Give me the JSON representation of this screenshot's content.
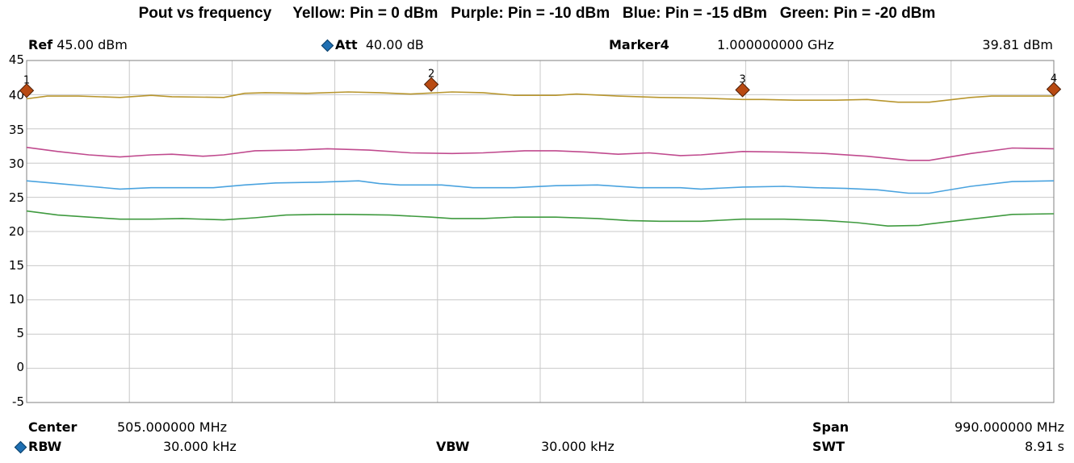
{
  "title": "Pout vs frequency     Yellow: Pin = 0 dBm   Purple: Pin = -10 dBm   Blue: Pin = -15 dBm   Green: Pin = -20 dBm",
  "header": {
    "ref_label": "Ref",
    "ref_value": "45.00 dBm",
    "att_label": "Att",
    "att_value": "40.00 dB",
    "marker_label": "Marker4",
    "marker_freq": "1.000000000 GHz",
    "marker_level": "39.81 dBm"
  },
  "footer": {
    "center_label": "Center",
    "center_value": "505.000000 MHz",
    "span_label": "Span",
    "span_value": "990.000000 MHz",
    "rbw_label": "RBW",
    "rbw_value": "30.000 kHz",
    "vbw_label": "VBW",
    "vbw_value": "30.000 kHz",
    "swt_label": "SWT",
    "swt_value": "8.91 s"
  },
  "chart_data": {
    "type": "line",
    "ylim": [
      -5,
      45
    ],
    "xlim": [
      10,
      1000
    ],
    "grid": true,
    "yticks": [
      "45",
      "40",
      "35",
      "30",
      "25",
      "20",
      "15",
      "10",
      "5",
      "0",
      "-5"
    ],
    "series": [
      {
        "color": "#b8962e",
        "x": [
          10,
          30,
          60,
          100,
          130,
          150,
          200,
          220,
          240,
          280,
          320,
          350,
          380,
          420,
          450,
          480,
          520,
          540,
          580,
          620,
          660,
          700,
          720,
          750,
          790,
          820,
          850,
          880,
          920,
          940,
          970,
          1000
        ],
        "y": [
          39.4,
          39.8,
          39.8,
          39.6,
          39.9,
          39.7,
          39.6,
          40.2,
          40.3,
          40.2,
          40.4,
          40.3,
          40.1,
          40.4,
          40.3,
          39.9,
          39.9,
          40.1,
          39.8,
          39.6,
          39.5,
          39.3,
          39.3,
          39.2,
          39.2,
          39.3,
          38.9,
          38.9,
          39.6,
          39.8,
          39.8,
          39.8
        ]
      },
      {
        "color": "#c04a8e",
        "x": [
          10,
          40,
          70,
          100,
          130,
          150,
          180,
          200,
          230,
          270,
          300,
          340,
          380,
          420,
          450,
          490,
          520,
          550,
          580,
          610,
          640,
          660,
          700,
          740,
          780,
          820,
          860,
          880,
          920,
          960,
          1000
        ],
        "y": [
          32.3,
          31.7,
          31.2,
          30.9,
          31.2,
          31.3,
          31.0,
          31.2,
          31.8,
          31.9,
          32.1,
          31.9,
          31.5,
          31.4,
          31.5,
          31.8,
          31.8,
          31.6,
          31.3,
          31.5,
          31.1,
          31.2,
          31.7,
          31.6,
          31.4,
          31.0,
          30.4,
          30.4,
          31.4,
          32.2,
          32.1
        ]
      },
      {
        "color": "#4aa3df",
        "x": [
          10,
          40,
          70,
          100,
          130,
          160,
          190,
          220,
          250,
          290,
          330,
          350,
          370,
          410,
          440,
          480,
          520,
          560,
          600,
          640,
          660,
          700,
          740,
          770,
          800,
          830,
          860,
          880,
          920,
          960,
          1000
        ],
        "y": [
          27.4,
          27.0,
          26.6,
          26.2,
          26.4,
          26.4,
          26.4,
          26.8,
          27.1,
          27.2,
          27.4,
          27.0,
          26.8,
          26.8,
          26.4,
          26.4,
          26.7,
          26.8,
          26.4,
          26.4,
          26.2,
          26.5,
          26.6,
          26.4,
          26.3,
          26.1,
          25.6,
          25.6,
          26.6,
          27.3,
          27.4
        ]
      },
      {
        "color": "#3f9a3f",
        "x": [
          10,
          40,
          70,
          100,
          130,
          160,
          200,
          230,
          260,
          290,
          320,
          360,
          400,
          420,
          450,
          480,
          520,
          560,
          590,
          620,
          660,
          700,
          740,
          780,
          810,
          840,
          870,
          880,
          920,
          960,
          1000
        ],
        "y": [
          23.0,
          22.4,
          22.1,
          21.8,
          21.8,
          21.9,
          21.7,
          22.0,
          22.4,
          22.5,
          22.5,
          22.4,
          22.1,
          21.9,
          21.9,
          22.1,
          22.1,
          21.9,
          21.6,
          21.5,
          21.5,
          21.8,
          21.8,
          21.6,
          21.3,
          20.8,
          20.9,
          21.1,
          21.8,
          22.5,
          22.6
        ]
      }
    ],
    "markers": [
      {
        "label": "1",
        "x": 10,
        "y": 40.6
      },
      {
        "label": "2",
        "x": 400,
        "y": 41.5
      },
      {
        "label": "3",
        "x": 700,
        "y": 40.7
      },
      {
        "label": "4",
        "x": 1000,
        "y": 40.8
      }
    ]
  }
}
